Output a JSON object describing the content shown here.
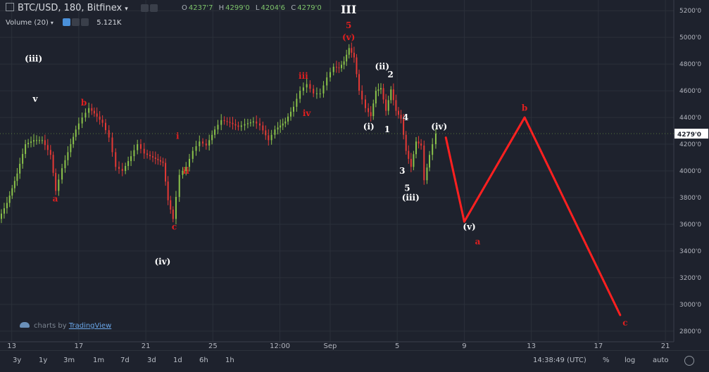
{
  "header": {
    "symbol": "BTC/USD, 180, Bitfinex",
    "ohlc": [
      {
        "k": "O",
        "v": "4237'7"
      },
      {
        "k": "H",
        "v": "4299'0"
      },
      {
        "k": "L",
        "v": "4204'6"
      },
      {
        "k": "C",
        "v": "4279'0"
      }
    ],
    "volume_label": "Volume (20)",
    "volume_value": "5.121K"
  },
  "colors": {
    "background": "#1e222d",
    "up": "#8bc34a",
    "down": "#e53935",
    "projection": "#ff2020",
    "label_red": "#e02020",
    "label_white": "#ffffff",
    "grid": "#2b303a",
    "axis_text": "#b2b5be"
  },
  "chart_data": {
    "type": "line",
    "title": "",
    "xlabel": "",
    "ylabel": "",
    "y_unit": "USD",
    "ylim": [
      2720,
      5280
    ],
    "x_range_days": [
      12.3,
      52.5
    ],
    "grid": true,
    "x_ticks": [
      {
        "day": 13,
        "label": "13"
      },
      {
        "day": 17,
        "label": "17"
      },
      {
        "day": 21,
        "label": "21"
      },
      {
        "day": 25,
        "label": "25"
      },
      {
        "day": 29,
        "label": "12:00"
      },
      {
        "day": 32,
        "label": "Sep"
      },
      {
        "day": 36,
        "label": "5"
      },
      {
        "day": 40,
        "label": "9"
      },
      {
        "day": 44,
        "label": "13"
      },
      {
        "day": 48,
        "label": "17"
      },
      {
        "day": 52,
        "label": "21"
      }
    ],
    "y_ticks": [
      {
        "v": 5200,
        "label": "5200'0"
      },
      {
        "v": 5000,
        "label": "5000'0"
      },
      {
        "v": 4800,
        "label": "4800'0"
      },
      {
        "v": 4600,
        "label": "4600'0"
      },
      {
        "v": 4400,
        "label": "4400'0"
      },
      {
        "v": 4200,
        "label": "4200'0"
      },
      {
        "v": 4000,
        "label": "4000'0"
      },
      {
        "v": 3800,
        "label": "3800'0"
      },
      {
        "v": 3600,
        "label": "3600'0"
      },
      {
        "v": 3400,
        "label": "3400'0"
      },
      {
        "v": 3200,
        "label": "3200'0"
      },
      {
        "v": 3000,
        "label": "3000'0"
      },
      {
        "v": 2800,
        "label": "2800'0"
      }
    ],
    "last_price": {
      "v": 4279,
      "label": "4279'0"
    },
    "price_path": [
      [
        12.3,
        3640
      ],
      [
        12.8,
        3760
      ],
      [
        13.4,
        3980
      ],
      [
        13.9,
        4200
      ],
      [
        14.4,
        4230
      ],
      [
        14.9,
        4230
      ],
      [
        15.4,
        4120
      ],
      [
        15.7,
        3850
      ],
      [
        16.1,
        4020
      ],
      [
        16.6,
        4200
      ],
      [
        16.9,
        4310
      ],
      [
        17.3,
        4400
      ],
      [
        17.7,
        4470
      ],
      [
        18.0,
        4430
      ],
      [
        18.5,
        4360
      ],
      [
        18.9,
        4250
      ],
      [
        19.3,
        4030
      ],
      [
        19.7,
        4000
      ],
      [
        20.2,
        4110
      ],
      [
        20.6,
        4200
      ],
      [
        21.0,
        4130
      ],
      [
        21.5,
        4100
      ],
      [
        22.1,
        4060
      ],
      [
        22.4,
        3780
      ],
      [
        22.7,
        3640
      ],
      [
        23.1,
        3970
      ],
      [
        23.5,
        4030
      ],
      [
        23.9,
        4150
      ],
      [
        24.3,
        4220
      ],
      [
        24.7,
        4190
      ],
      [
        25.2,
        4310
      ],
      [
        25.6,
        4380
      ],
      [
        26.1,
        4360
      ],
      [
        26.6,
        4330
      ],
      [
        27.0,
        4350
      ],
      [
        27.5,
        4370
      ],
      [
        27.9,
        4340
      ],
      [
        28.4,
        4230
      ],
      [
        28.8,
        4310
      ],
      [
        29.4,
        4370
      ],
      [
        29.9,
        4480
      ],
      [
        30.3,
        4600
      ],
      [
        30.7,
        4650
      ],
      [
        31.1,
        4580
      ],
      [
        31.5,
        4580
      ],
      [
        31.9,
        4700
      ],
      [
        32.3,
        4780
      ],
      [
        32.6,
        4770
      ],
      [
        32.9,
        4820
      ],
      [
        33.2,
        4920
      ],
      [
        33.5,
        4850
      ],
      [
        33.8,
        4600
      ],
      [
        34.2,
        4470
      ],
      [
        34.5,
        4410
      ],
      [
        34.8,
        4600
      ],
      [
        35.1,
        4620
      ],
      [
        35.4,
        4450
      ],
      [
        35.7,
        4610
      ],
      [
        36.0,
        4450
      ],
      [
        36.3,
        4390
      ],
      [
        36.6,
        4150
      ],
      [
        36.9,
        4030
      ],
      [
        37.2,
        4220
      ],
      [
        37.5,
        4190
      ],
      [
        37.7,
        3930
      ],
      [
        38.0,
        4120
      ],
      [
        38.4,
        4280
      ]
    ],
    "projection": [
      [
        38.9,
        4250
      ],
      [
        40.0,
        3620
      ],
      [
        43.6,
        4400
      ],
      [
        49.3,
        2920
      ]
    ],
    "wave_labels": [
      {
        "text": "(iii)",
        "day": 14.3,
        "price": 4820,
        "color": "white"
      },
      {
        "text": "v",
        "day": 14.4,
        "price": 4520,
        "color": "white"
      },
      {
        "text": "b",
        "day": 17.3,
        "price": 4490,
        "color": "red"
      },
      {
        "text": "a",
        "day": 15.6,
        "price": 3770,
        "color": "red"
      },
      {
        "text": "i",
        "day": 22.9,
        "price": 4240,
        "color": "red"
      },
      {
        "text": "ii",
        "day": 23.4,
        "price": 3980,
        "color": "red"
      },
      {
        "text": "c",
        "day": 22.7,
        "price": 3560,
        "color": "red"
      },
      {
        "text": "(iv)",
        "day": 22.0,
        "price": 3300,
        "color": "white"
      },
      {
        "text": "iii",
        "day": 30.4,
        "price": 4690,
        "color": "red"
      },
      {
        "text": "iv",
        "day": 30.6,
        "price": 4410,
        "color": "red"
      },
      {
        "text": "III",
        "day": 33.1,
        "price": 5180,
        "color": "white"
      },
      {
        "text": "5",
        "day": 33.1,
        "price": 5070,
        "color": "red"
      },
      {
        "text": "(v)",
        "day": 33.1,
        "price": 4980,
        "color": "red"
      },
      {
        "text": "(ii)",
        "day": 35.1,
        "price": 4760,
        "color": "white"
      },
      {
        "text": "2",
        "day": 35.6,
        "price": 4700,
        "color": "white"
      },
      {
        "text": "(i)",
        "day": 34.3,
        "price": 4310,
        "color": "white"
      },
      {
        "text": "1",
        "day": 35.4,
        "price": 4290,
        "color": "white"
      },
      {
        "text": "4",
        "day": 36.5,
        "price": 4380,
        "color": "white"
      },
      {
        "text": "(iv)",
        "day": 38.5,
        "price": 4310,
        "color": "white"
      },
      {
        "text": "3",
        "day": 36.3,
        "price": 3980,
        "color": "white"
      },
      {
        "text": "5",
        "day": 36.6,
        "price": 3850,
        "color": "white"
      },
      {
        "text": "(iii)",
        "day": 36.8,
        "price": 3780,
        "color": "white"
      },
      {
        "text": "(v)",
        "day": 40.3,
        "price": 3560,
        "color": "white"
      },
      {
        "text": "a",
        "day": 40.8,
        "price": 3450,
        "color": "red"
      },
      {
        "text": "b",
        "day": 43.6,
        "price": 4450,
        "color": "red"
      },
      {
        "text": "c",
        "day": 49.6,
        "price": 2840,
        "color": "red"
      }
    ]
  },
  "timeframes": [
    "3y",
    "1y",
    "3m",
    "1m",
    "7d",
    "3d",
    "1d",
    "6h",
    "1h"
  ],
  "footer": {
    "clock": "14:38:49 (UTC)",
    "percent": "%",
    "log": "log",
    "auto": "auto"
  },
  "watermark": {
    "prefix": "charts by",
    "brand": "TradingView"
  }
}
